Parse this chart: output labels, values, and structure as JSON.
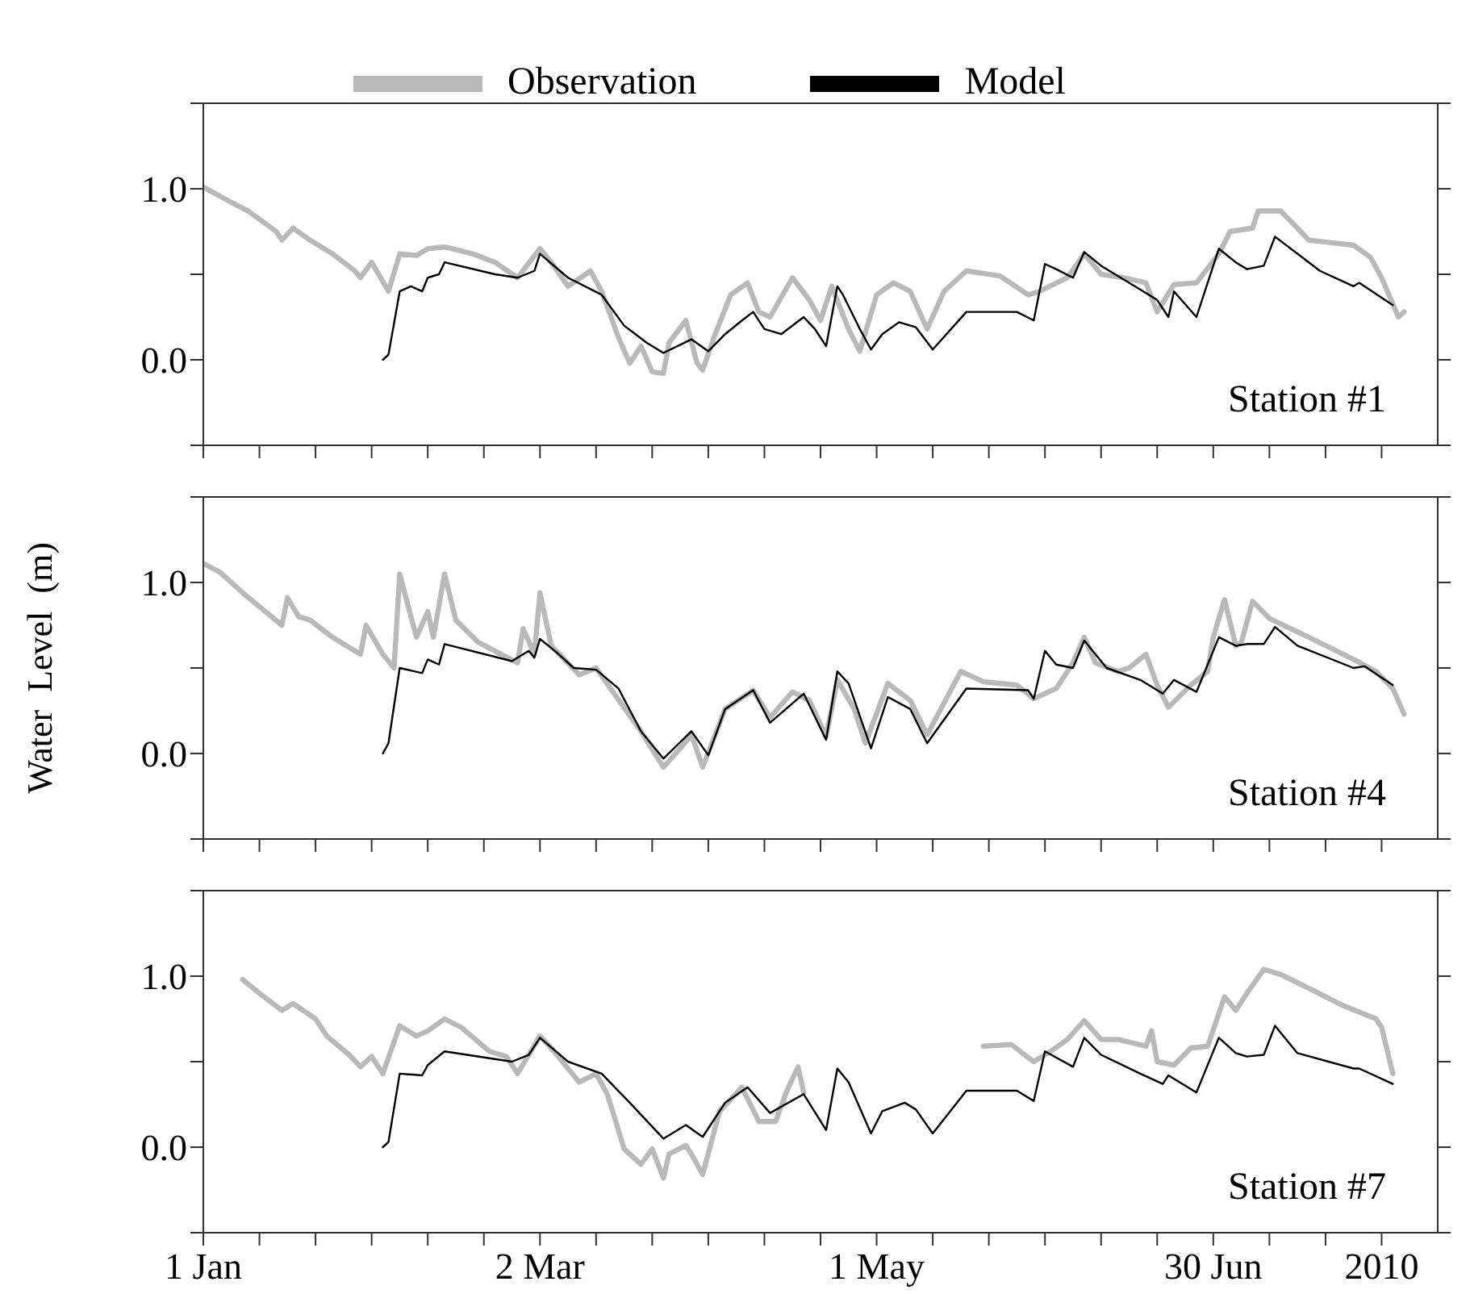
{
  "chart_data": [
    {
      "type": "line",
      "legend": "top",
      "tick_labels": "y",
      "annotations": [
        "Station #1"
      ],
      "xlim": [
        "2010-01-01",
        "2010-08-09"
      ],
      "xticks": [
        {
          "value": "2010-01-01",
          "label": null
        },
        {
          "value": "2010-01-11",
          "label": null
        },
        {
          "value": "2010-01-21",
          "label": null
        },
        {
          "value": "2010-01-31",
          "label": null
        },
        {
          "value": "2010-02-10",
          "label": null
        },
        {
          "value": "2010-02-20",
          "label": null
        },
        {
          "value": "2010-03-02",
          "label": null
        },
        {
          "value": "2010-03-12",
          "label": null
        },
        {
          "value": "2010-03-22",
          "label": null
        },
        {
          "value": "2010-04-01",
          "label": null
        },
        {
          "value": "2010-04-11",
          "label": null
        },
        {
          "value": "2010-04-21",
          "label": null
        },
        {
          "value": "2010-05-01",
          "label": null
        },
        {
          "value": "2010-05-11",
          "label": null
        },
        {
          "value": "2010-05-21",
          "label": null
        },
        {
          "value": "2010-05-31",
          "label": null
        },
        {
          "value": "2010-06-10",
          "label": null
        },
        {
          "value": "2010-06-20",
          "label": null
        },
        {
          "value": "2010-06-30",
          "label": null
        },
        {
          "value": "2010-07-10",
          "label": null
        },
        {
          "value": "2010-07-20",
          "label": null
        },
        {
          "value": "2010-07-30",
          "label": null
        }
      ],
      "ylim": [
        -0.5,
        1.5
      ],
      "yticks": [
        {
          "value": -0.5,
          "label": null
        },
        {
          "value": 0,
          "label": "0.0"
        },
        {
          "value": 0.5,
          "label": null
        },
        {
          "value": 1,
          "label": "1.0"
        },
        {
          "value": 1.5,
          "label": null
        }
      ],
      "series": [
        {
          "name": "Observation",
          "color": "#b9b9b9",
          "x": [
            "2010-01-01",
            "2010-01-06",
            "2010-01-09",
            "2010-01-14",
            "2010-01-15",
            "2010-01-17",
            "2010-01-20",
            "2010-01-24",
            "2010-01-28",
            "2010-01-29",
            "2010-01-31",
            "2010-02-03",
            "2010-02-05",
            "2010-02-08",
            "2010-02-10",
            "2010-02-13",
            "2010-02-18",
            "2010-02-22",
            "2010-02-26",
            "2010-03-02",
            "2010-03-04",
            "2010-03-07",
            "2010-03-11",
            "2010-03-13",
            "2010-03-16",
            "2010-03-18",
            "2010-03-20",
            "2010-03-22",
            "2010-03-24",
            "2010-03-25",
            "2010-03-28",
            "2010-03-30",
            "2010-03-31",
            "2010-04-02",
            "2010-04-05",
            "2010-04-08",
            "2010-04-10",
            "2010-04-12",
            "2010-04-16",
            "2010-04-19",
            "2010-04-21",
            "2010-04-23",
            "2010-04-26",
            "2010-04-28",
            "2010-05-01",
            "2010-05-04",
            "2010-05-07",
            "2010-05-10",
            "2010-05-13",
            "2010-05-17",
            "2010-05-23",
            "2010-05-28",
            "2010-05-30",
            "2010-06-04",
            "2010-06-07",
            "2010-06-10",
            "2010-06-14",
            "2010-06-18",
            "2010-06-20",
            "2010-06-23",
            "2010-06-27",
            "2010-07-01",
            "2010-07-03",
            "2010-07-07",
            "2010-07-08",
            "2010-07-12",
            "2010-07-15",
            "2010-07-17",
            "2010-07-25",
            "2010-07-28",
            "2010-07-30",
            "2010-08-02",
            "2010-08-03"
          ],
          "values": [
            1.01,
            0.92,
            0.87,
            0.75,
            0.7,
            0.77,
            0.7,
            0.62,
            0.52,
            0.48,
            0.57,
            0.4,
            0.62,
            0.61,
            0.65,
            0.66,
            0.62,
            0.57,
            0.48,
            0.65,
            0.57,
            0.43,
            0.52,
            0.4,
            0.13,
            -0.02,
            0.08,
            -0.07,
            -0.08,
            0.1,
            0.23,
            -0.02,
            -0.06,
            0.13,
            0.38,
            0.45,
            0.28,
            0.25,
            0.48,
            0.35,
            0.23,
            0.43,
            0.18,
            0.05,
            0.38,
            0.45,
            0.4,
            0.18,
            0.4,
            0.52,
            0.49,
            0.38,
            0.4,
            0.48,
            0.62,
            0.5,
            0.48,
            0.45,
            0.28,
            0.44,
            0.45,
            0.62,
            0.75,
            0.77,
            0.87,
            0.87,
            0.77,
            0.7,
            0.67,
            0.6,
            0.48,
            0.25,
            0.28
          ]
        },
        {
          "name": "Model",
          "color": "#000000",
          "x": [
            "2010-02-02",
            "2010-02-03",
            "2010-02-05",
            "2010-02-07",
            "2010-02-09",
            "2010-02-10",
            "2010-02-12",
            "2010-02-13",
            "2010-02-22",
            "2010-02-26",
            "2010-03-01",
            "2010-03-02",
            "2010-03-07",
            "2010-03-13",
            "2010-03-17",
            "2010-03-21",
            "2010-03-24",
            "2010-03-29",
            "2010-04-01",
            "2010-04-04",
            "2010-04-07",
            "2010-04-09",
            "2010-04-11",
            "2010-04-14",
            "2010-04-18",
            "2010-04-20",
            "2010-04-22",
            "2010-04-24",
            "2010-04-25",
            "2010-04-28",
            "2010-04-30",
            "2010-05-02",
            "2010-05-05",
            "2010-05-08",
            "2010-05-11",
            "2010-05-17",
            "2010-05-26",
            "2010-05-29",
            "2010-05-31",
            "2010-06-02",
            "2010-06-05",
            "2010-06-07",
            "2010-06-10",
            "2010-06-16",
            "2010-06-20",
            "2010-06-22",
            "2010-06-23",
            "2010-06-27",
            "2010-07-01",
            "2010-07-04",
            "2010-07-06",
            "2010-07-09",
            "2010-07-11",
            "2010-07-15",
            "2010-07-19",
            "2010-07-25",
            "2010-07-26",
            "2010-08-01"
          ],
          "values": [
            0,
            0.03,
            0.4,
            0.43,
            0.4,
            0.48,
            0.5,
            0.57,
            0.5,
            0.48,
            0.52,
            0.62,
            0.48,
            0.38,
            0.2,
            0.1,
            0.04,
            0.12,
            0.05,
            0.15,
            0.23,
            0.28,
            0.18,
            0.15,
            0.25,
            0.18,
            0.08,
            0.43,
            0.38,
            0.18,
            0.06,
            0.15,
            0.22,
            0.19,
            0.06,
            0.28,
            0.28,
            0.23,
            0.56,
            0.53,
            0.48,
            0.63,
            0.55,
            0.43,
            0.35,
            0.25,
            0.4,
            0.25,
            0.65,
            0.57,
            0.53,
            0.55,
            0.72,
            0.62,
            0.52,
            0.43,
            0.45,
            0.32
          ]
        }
      ]
    },
    {
      "type": "line",
      "tick_labels": "y",
      "ylabel": "Water  Level  (m)",
      "annotations": [
        "Station #4"
      ],
      "xlim": [
        "2010-01-01",
        "2010-08-09"
      ],
      "xticks": [
        {
          "value": "2010-01-01",
          "label": null
        },
        {
          "value": "2010-01-11",
          "label": null
        },
        {
          "value": "2010-01-21",
          "label": null
        },
        {
          "value": "2010-01-31",
          "label": null
        },
        {
          "value": "2010-02-10",
          "label": null
        },
        {
          "value": "2010-02-20",
          "label": null
        },
        {
          "value": "2010-03-02",
          "label": null
        },
        {
          "value": "2010-03-12",
          "label": null
        },
        {
          "value": "2010-03-22",
          "label": null
        },
        {
          "value": "2010-04-01",
          "label": null
        },
        {
          "value": "2010-04-11",
          "label": null
        },
        {
          "value": "2010-04-21",
          "label": null
        },
        {
          "value": "2010-05-01",
          "label": null
        },
        {
          "value": "2010-05-11",
          "label": null
        },
        {
          "value": "2010-05-21",
          "label": null
        },
        {
          "value": "2010-05-31",
          "label": null
        },
        {
          "value": "2010-06-10",
          "label": null
        },
        {
          "value": "2010-06-20",
          "label": null
        },
        {
          "value": "2010-06-30",
          "label": null
        },
        {
          "value": "2010-07-10",
          "label": null
        },
        {
          "value": "2010-07-20",
          "label": null
        },
        {
          "value": "2010-07-30",
          "label": null
        }
      ],
      "ylim": [
        -0.5,
        1.5
      ],
      "yticks": [
        {
          "value": -0.5,
          "label": null
        },
        {
          "value": 0,
          "label": "0.0"
        },
        {
          "value": 0.5,
          "label": null
        },
        {
          "value": 1,
          "label": "1.0"
        },
        {
          "value": 1.5,
          "label": null
        }
      ],
      "series": [
        {
          "color": "#b9b9b9",
          "x": [
            "2010-01-01",
            "2010-01-04",
            "2010-01-08",
            "2010-01-15",
            "2010-01-16",
            "2010-01-18",
            "2010-01-20",
            "2010-01-24",
            "2010-01-29",
            "2010-01-30",
            "2010-02-02",
            "2010-02-04",
            "2010-02-05",
            "2010-02-07",
            "2010-02-08",
            "2010-02-10",
            "2010-02-11",
            "2010-02-13",
            "2010-02-15",
            "2010-02-19",
            "2010-02-26",
            "2010-02-27",
            "2010-03-01",
            "2010-03-02",
            "2010-03-04",
            "2010-03-09",
            "2010-03-12",
            "2010-03-15",
            "2010-03-20",
            "2010-03-24",
            "2010-03-27",
            "2010-03-29",
            "2010-03-31",
            "2010-04-04",
            "2010-04-09",
            "2010-04-12",
            "2010-04-16",
            "2010-04-19",
            "2010-04-22",
            "2010-04-24",
            "2010-04-27",
            "2010-04-29",
            "2010-05-03",
            "2010-05-07",
            "2010-05-10",
            "2010-05-16",
            "2010-05-20",
            "2010-05-26",
            "2010-05-29",
            "2010-06-02",
            "2010-06-05",
            "2010-06-07",
            "2010-06-09",
            "2010-06-13",
            "2010-06-15",
            "2010-06-18",
            "2010-06-20",
            "2010-06-22",
            "2010-06-26",
            "2010-06-29",
            "2010-06-30",
            "2010-07-02",
            "2010-07-04",
            "2010-07-05",
            "2010-07-07",
            "2010-07-10",
            "2010-07-17",
            "2010-07-25",
            "2010-07-29",
            "2010-08-01",
            "2010-08-03"
          ],
          "values": [
            1.11,
            1.06,
            0.94,
            0.75,
            0.91,
            0.8,
            0.78,
            0.68,
            0.58,
            0.75,
            0.58,
            0.5,
            1.05,
            0.8,
            0.68,
            0.83,
            0.68,
            1.05,
            0.78,
            0.65,
            0.53,
            0.73,
            0.58,
            0.94,
            0.63,
            0.46,
            0.5,
            0.36,
            0.13,
            -0.08,
            0.03,
            0.11,
            -0.08,
            0.26,
            0.37,
            0.21,
            0.36,
            0.31,
            0.1,
            0.43,
            0.26,
            0.06,
            0.41,
            0.31,
            0.11,
            0.48,
            0.42,
            0.4,
            0.32,
            0.38,
            0.53,
            0.68,
            0.53,
            0.48,
            0.5,
            0.58,
            0.4,
            0.27,
            0.4,
            0.48,
            0.68,
            0.9,
            0.63,
            0.65,
            0.89,
            0.79,
            0.68,
            0.55,
            0.48,
            0.38,
            0.23
          ]
        },
        {
          "color": "#000000",
          "x": [
            "2010-02-02",
            "2010-02-03",
            "2010-02-05",
            "2010-02-09",
            "2010-02-10",
            "2010-02-12",
            "2010-02-13",
            "2010-02-25",
            "2010-02-28",
            "2010-03-01",
            "2010-03-02",
            "2010-03-05",
            "2010-03-08",
            "2010-03-12",
            "2010-03-16",
            "2010-03-20",
            "2010-03-24",
            "2010-03-29",
            "2010-04-01",
            "2010-04-04",
            "2010-04-09",
            "2010-04-12",
            "2010-04-18",
            "2010-04-22",
            "2010-04-24",
            "2010-04-26",
            "2010-04-30",
            "2010-05-03",
            "2010-05-07",
            "2010-05-10",
            "2010-05-17",
            "2010-05-28",
            "2010-05-29",
            "2010-05-31",
            "2010-06-02",
            "2010-06-05",
            "2010-06-07",
            "2010-06-11",
            "2010-06-17",
            "2010-06-21",
            "2010-06-23",
            "2010-06-27",
            "2010-07-01",
            "2010-07-04",
            "2010-07-06",
            "2010-07-09",
            "2010-07-11",
            "2010-07-15",
            "2010-07-25",
            "2010-07-27",
            "2010-08-01"
          ],
          "values": [
            0,
            0.06,
            0.5,
            0.47,
            0.55,
            0.52,
            0.64,
            0.54,
            0.6,
            0.56,
            0.67,
            0.59,
            0.5,
            0.49,
            0.38,
            0.13,
            -0.03,
            0.13,
            -0.01,
            0.26,
            0.37,
            0.18,
            0.35,
            0.08,
            0.48,
            0.41,
            0.03,
            0.33,
            0.26,
            0.06,
            0.38,
            0.37,
            0.32,
            0.6,
            0.52,
            0.5,
            0.66,
            0.5,
            0.43,
            0.35,
            0.43,
            0.36,
            0.68,
            0.63,
            0.64,
            0.64,
            0.74,
            0.63,
            0.5,
            0.51,
            0.4
          ]
        }
      ]
    },
    {
      "type": "line",
      "annotations": [
        "Station #7"
      ],
      "xlim": [
        "2010-01-01",
        "2010-08-09"
      ],
      "xticks": [
        {
          "value": "2010-01-01",
          "label": "1 Jan"
        },
        {
          "value": "2010-01-11",
          "label": null
        },
        {
          "value": "2010-01-21",
          "label": null
        },
        {
          "value": "2010-01-31",
          "label": null
        },
        {
          "value": "2010-02-10",
          "label": null
        },
        {
          "value": "2010-02-20",
          "label": null
        },
        {
          "value": "2010-03-02",
          "label": "2 Mar"
        },
        {
          "value": "2010-03-12",
          "label": null
        },
        {
          "value": "2010-03-22",
          "label": null
        },
        {
          "value": "2010-04-01",
          "label": null
        },
        {
          "value": "2010-04-11",
          "label": null
        },
        {
          "value": "2010-04-21",
          "label": null
        },
        {
          "value": "2010-05-01",
          "label": "1 May"
        },
        {
          "value": "2010-05-11",
          "label": null
        },
        {
          "value": "2010-05-21",
          "label": null
        },
        {
          "value": "2010-05-31",
          "label": null
        },
        {
          "value": "2010-06-10",
          "label": null
        },
        {
          "value": "2010-06-20",
          "label": null
        },
        {
          "value": "2010-06-30",
          "label": "30 Jun"
        },
        {
          "value": "2010-07-10",
          "label": null
        },
        {
          "value": "2010-07-20",
          "label": null
        },
        {
          "value": "2010-07-30",
          "label": "2010"
        }
      ],
      "ylim": [
        -0.5,
        1.5
      ],
      "yticks": [
        {
          "value": -0.5,
          "label": null
        },
        {
          "value": 0,
          "label": "0.0"
        },
        {
          "value": 0.5,
          "label": null
        },
        {
          "value": 1,
          "label": "1.0"
        },
        {
          "value": 1.5,
          "label": null
        }
      ],
      "series": [
        {
          "color": "#b9b9b9",
          "x": [
            "2010-01-08",
            "2010-01-11",
            "2010-01-15",
            "2010-01-17",
            "2010-01-21",
            "2010-01-23",
            "2010-01-27",
            "2010-01-29",
            "2010-01-31",
            "2010-02-02",
            "2010-02-05",
            "2010-02-08",
            "2010-02-10",
            "2010-02-13",
            "2010-02-16",
            "2010-02-21",
            "2010-02-24",
            "2010-02-26",
            "2010-03-02",
            "2010-03-04",
            "2010-03-09",
            "2010-03-12",
            "2010-03-14",
            "2010-03-17",
            "2010-03-20",
            "2010-03-22",
            "2010-03-24",
            "2010-03-25",
            "2010-03-28",
            "2010-03-29",
            "2010-03-31",
            "2010-04-03",
            "2010-04-07",
            "2010-04-10",
            "2010-04-13",
            "2010-04-15",
            "2010-04-17",
            "2010-04-18",
            "2010-05-01",
            "2010-05-20",
            "2010-05-25",
            "2010-05-29",
            "2010-06-01",
            "2010-06-04",
            "2010-06-07",
            "2010-06-10",
            "2010-06-13",
            "2010-06-18",
            "2010-06-19",
            "2010-06-20",
            "2010-06-23",
            "2010-06-26",
            "2010-06-29",
            "2010-07-02",
            "2010-07-04",
            "2010-07-06",
            "2010-07-09",
            "2010-07-12",
            "2010-07-17",
            "2010-07-23",
            "2010-07-29",
            "2010-07-30",
            "2010-08-01"
          ],
          "values": [
            0.98,
            0.9,
            0.8,
            0.84,
            0.75,
            0.65,
            0.54,
            0.47,
            0.53,
            0.43,
            0.71,
            0.65,
            0.68,
            0.75,
            0.7,
            0.56,
            0.53,
            0.43,
            0.65,
            0.58,
            0.38,
            0.43,
            0.31,
            -0.01,
            -0.1,
            -0.01,
            -0.18,
            -0.04,
            0.01,
            -0.04,
            -0.16,
            0.21,
            0.35,
            0.15,
            0.15,
            0.33,
            0.47,
            0.32,
            null,
            0.59,
            0.6,
            0.5,
            0.56,
            0.63,
            0.74,
            0.63,
            0.63,
            0.59,
            0.68,
            0.5,
            0.48,
            0.58,
            0.59,
            0.88,
            0.8,
            0.9,
            1.04,
            1.01,
            0.93,
            0.83,
            0.75,
            0.7,
            0.43
          ]
        },
        {
          "color": "#000000",
          "x": [
            "2010-02-02",
            "2010-02-03",
            "2010-02-05",
            "2010-02-09",
            "2010-02-10",
            "2010-02-13",
            "2010-02-25",
            "2010-02-28",
            "2010-03-02",
            "2010-03-07",
            "2010-03-13",
            "2010-03-18",
            "2010-03-24",
            "2010-03-28",
            "2010-03-31",
            "2010-04-04",
            "2010-04-08",
            "2010-04-12",
            "2010-04-18",
            "2010-04-22",
            "2010-04-24",
            "2010-04-26",
            "2010-04-30",
            "2010-05-02",
            "2010-05-06",
            "2010-05-08",
            "2010-05-11",
            "2010-05-17",
            "2010-05-26",
            "2010-05-29",
            "2010-05-31",
            "2010-06-05",
            "2010-06-07",
            "2010-06-10",
            "2010-06-17",
            "2010-06-21",
            "2010-06-22",
            "2010-06-27",
            "2010-07-01",
            "2010-07-04",
            "2010-07-06",
            "2010-07-09",
            "2010-07-11",
            "2010-07-15",
            "2010-07-25",
            "2010-07-26",
            "2010-08-01"
          ],
          "values": [
            0,
            0.03,
            0.43,
            0.42,
            0.48,
            0.56,
            0.5,
            0.54,
            0.64,
            0.5,
            0.43,
            0.26,
            0.05,
            0.13,
            0.06,
            0.26,
            0.35,
            0.2,
            0.31,
            0.1,
            0.46,
            0.38,
            0.08,
            0.21,
            0.26,
            0.22,
            0.08,
            0.33,
            0.33,
            0.27,
            0.56,
            0.47,
            0.64,
            0.54,
            0.43,
            0.37,
            0.42,
            0.32,
            0.64,
            0.55,
            0.53,
            0.54,
            0.71,
            0.55,
            0.46,
            0.46,
            0.37
          ]
        }
      ]
    }
  ]
}
